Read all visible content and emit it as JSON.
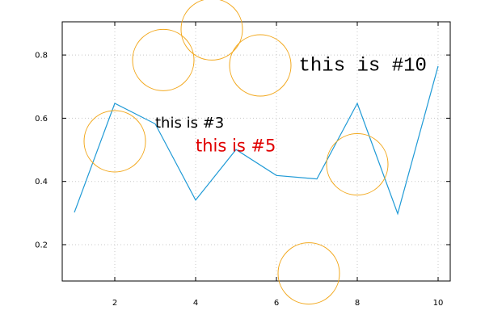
{
  "chart_data": {
    "type": "line",
    "title": "",
    "xlabel": "",
    "ylabel": "",
    "xlim": [
      0.7,
      10.3
    ],
    "ylim": [
      0.085,
      0.905
    ],
    "x_ticks": [
      2,
      4,
      6,
      8,
      10
    ],
    "y_ticks": [
      0.2,
      0.4,
      0.6,
      0.8
    ],
    "grid": true,
    "series": [
      {
        "color": "#1f9ad6",
        "x": [
          1,
          2,
          3,
          4,
          5,
          6,
          7,
          8,
          9,
          10
        ],
        "y": [
          0.302,
          0.647,
          0.582,
          0.341,
          0.501,
          0.419,
          0.408,
          0.647,
          0.298,
          0.765
        ]
      }
    ],
    "bubbles": {
      "color": "#f2a81d",
      "points": [
        {
          "x": 2.0,
          "y": 0.527
        },
        {
          "x": 3.2,
          "y": 0.784
        },
        {
          "x": 4.4,
          "y": 0.881
        },
        {
          "x": 5.6,
          "y": 0.767
        },
        {
          "x": 6.8,
          "y": 0.109
        },
        {
          "x": 8.0,
          "y": 0.454
        }
      ]
    },
    "annotations": [
      {
        "text": "this is #3",
        "x": 3.0,
        "y": 0.57,
        "color": "#000000",
        "font": "sans",
        "size": "medium"
      },
      {
        "text": "this is #5",
        "x": 4.0,
        "y": 0.495,
        "color": "#e00000",
        "font": "sans",
        "size": "large"
      },
      {
        "text": "this is #10",
        "x": 6.55,
        "y": 0.75,
        "color": "#000000",
        "font": "mono",
        "size": "xlarge"
      }
    ]
  }
}
